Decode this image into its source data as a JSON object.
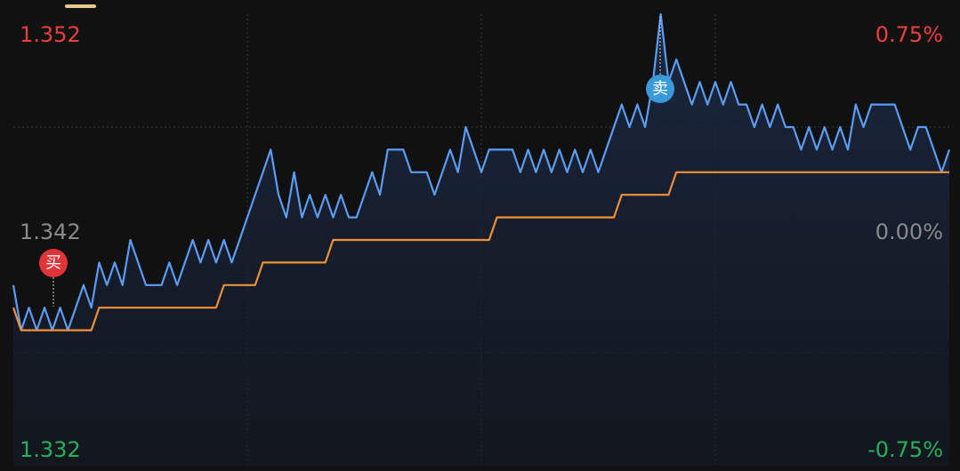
{
  "chart_data": {
    "type": "line",
    "ylim": [
      1.332,
      1.352
    ],
    "yticks": [
      1.352,
      1.342,
      1.332
    ],
    "ytick_colors": [
      "#e8403f",
      "#8a8a8e",
      "#27b05c"
    ],
    "y2lim": [
      -0.75,
      0.75
    ],
    "y2ticks": [
      {
        "value": 0.75,
        "label": "0.75%"
      },
      {
        "value": 0,
        "label": "0.00%"
      },
      {
        "value": -0.75,
        "label": "-0.75%"
      }
    ],
    "y2tick_colors": [
      "#e8403f",
      "#8a8a8e",
      "#27b05c"
    ],
    "series": [
      {
        "color": "#5b9cf5",
        "fill": true,
        "values": [
          1.34,
          1.338,
          1.339,
          1.338,
          1.339,
          1.338,
          1.339,
          1.338,
          1.339,
          1.34,
          1.339,
          1.341,
          1.34,
          1.341,
          1.34,
          1.342,
          1.341,
          1.34,
          1.34,
          1.34,
          1.341,
          1.34,
          1.341,
          1.342,
          1.341,
          1.342,
          1.341,
          1.342,
          1.341,
          1.342,
          1.343,
          1.344,
          1.345,
          1.346,
          1.344,
          1.343,
          1.345,
          1.343,
          1.344,
          1.343,
          1.344,
          1.343,
          1.344,
          1.343,
          1.343,
          1.344,
          1.345,
          1.344,
          1.346,
          1.346,
          1.346,
          1.345,
          1.345,
          1.345,
          1.344,
          1.345,
          1.346,
          1.345,
          1.347,
          1.346,
          1.345,
          1.346,
          1.346,
          1.346,
          1.346,
          1.345,
          1.346,
          1.345,
          1.346,
          1.345,
          1.346,
          1.345,
          1.346,
          1.345,
          1.346,
          1.345,
          1.346,
          1.347,
          1.348,
          1.347,
          1.348,
          1.347,
          1.349,
          1.352,
          1.349,
          1.35,
          1.349,
          1.348,
          1.349,
          1.348,
          1.349,
          1.348,
          1.349,
          1.348,
          1.348,
          1.347,
          1.348,
          1.347,
          1.348,
          1.347,
          1.347,
          1.346,
          1.347,
          1.346,
          1.347,
          1.346,
          1.347,
          1.346,
          1.348,
          1.347,
          1.348,
          1.348,
          1.348,
          1.348,
          1.347,
          1.346,
          1.347,
          1.347,
          1.346,
          1.345,
          1.346
        ]
      },
      {
        "color": "#f0913a",
        "fill": false,
        "values": [
          1.339,
          1.338,
          1.338,
          1.338,
          1.338,
          1.338,
          1.338,
          1.338,
          1.338,
          1.338,
          1.338,
          1.339,
          1.339,
          1.339,
          1.339,
          1.339,
          1.339,
          1.339,
          1.339,
          1.339,
          1.339,
          1.339,
          1.339,
          1.339,
          1.339,
          1.339,
          1.339,
          1.34,
          1.34,
          1.34,
          1.34,
          1.34,
          1.341,
          1.341,
          1.341,
          1.341,
          1.341,
          1.341,
          1.341,
          1.341,
          1.341,
          1.342,
          1.342,
          1.342,
          1.342,
          1.342,
          1.342,
          1.342,
          1.342,
          1.342,
          1.342,
          1.342,
          1.342,
          1.342,
          1.342,
          1.342,
          1.342,
          1.342,
          1.342,
          1.342,
          1.342,
          1.342,
          1.343,
          1.343,
          1.343,
          1.343,
          1.343,
          1.343,
          1.343,
          1.343,
          1.343,
          1.343,
          1.343,
          1.343,
          1.343,
          1.343,
          1.343,
          1.343,
          1.344,
          1.344,
          1.344,
          1.344,
          1.344,
          1.344,
          1.344,
          1.345,
          1.345,
          1.345,
          1.345,
          1.345,
          1.345,
          1.345,
          1.345,
          1.345,
          1.345,
          1.345,
          1.345,
          1.345,
          1.345,
          1.345,
          1.345,
          1.345,
          1.345,
          1.345,
          1.345,
          1.345,
          1.345,
          1.345,
          1.345,
          1.345,
          1.345,
          1.345,
          1.345,
          1.345,
          1.345,
          1.345,
          1.345,
          1.345,
          1.345,
          1.345,
          1.345
        ]
      }
    ],
    "annotations": [
      {
        "text": "买",
        "color": "#e0343a"
      },
      {
        "text": "卖",
        "color": "#3a9ad9"
      }
    ]
  }
}
